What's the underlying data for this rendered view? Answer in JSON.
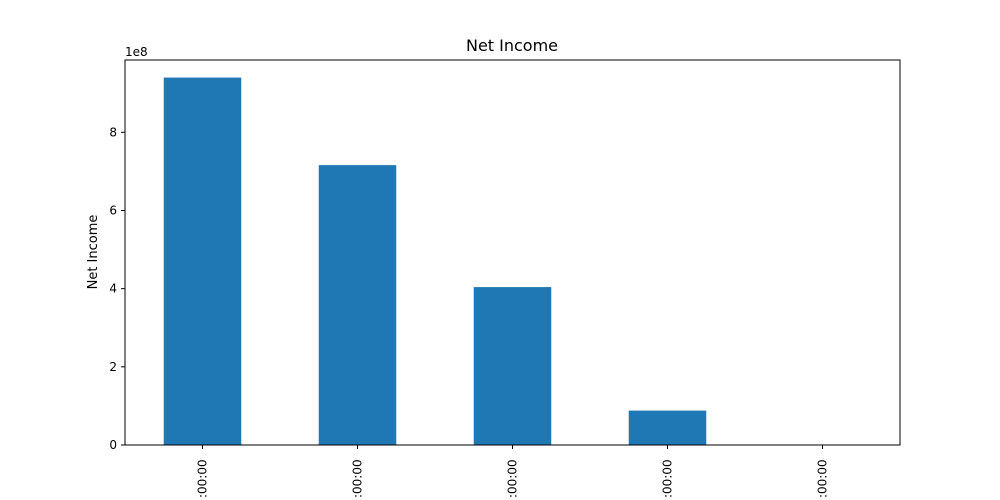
{
  "chart_data": {
    "type": "bar",
    "title": "Net Income",
    "xlabel": "",
    "ylabel": "Net Income",
    "y_offset_label": "1e8",
    "categories": [
      ":00:00",
      ":00:00",
      ":00:00",
      ":00:00",
      ":00:00"
    ],
    "values": [
      940000000,
      716000000,
      404000000,
      88000000,
      0
    ],
    "ylim": [
      0,
      985000000
    ],
    "yticks": [
      0,
      200000000,
      400000000,
      600000000,
      800000000
    ],
    "ytick_labels": [
      "0",
      "2",
      "4",
      "6",
      "8"
    ],
    "grid": false,
    "legend": "none",
    "bar_color": "#1f77b4"
  }
}
